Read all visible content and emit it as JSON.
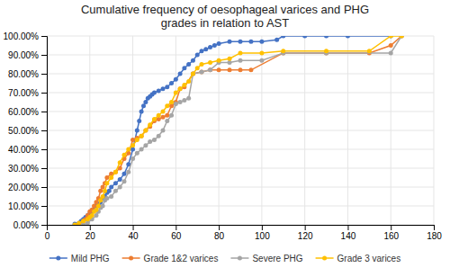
{
  "chart_data": {
    "type": "line",
    "title": "Cumulative frequency of oesophageal varices and PHG\ngrades in relation to AST",
    "xlim": [
      0,
      180
    ],
    "ylim": [
      0.0,
      1.0
    ],
    "xticks": [
      0,
      20,
      40,
      60,
      80,
      100,
      120,
      140,
      160,
      180
    ],
    "yticks": [
      {
        "value": 0.0,
        "label": "0.00%"
      },
      {
        "value": 0.1,
        "label": "10.00%"
      },
      {
        "value": 0.2,
        "label": "20.00%"
      },
      {
        "value": 0.3,
        "label": "30.00%"
      },
      {
        "value": 0.4,
        "label": "40.00%"
      },
      {
        "value": 0.5,
        "label": "50.00%"
      },
      {
        "value": 0.6,
        "label": "60.00%"
      },
      {
        "value": 0.7,
        "label": "70.00%"
      },
      {
        "value": 0.8,
        "label": "80.00%"
      },
      {
        "value": 0.9,
        "label": "90.00%"
      },
      {
        "value": 1.0,
        "label": "100.00%"
      }
    ],
    "grid": true,
    "legend": "bottom",
    "series": [
      {
        "name": "Mild PHG",
        "color": "#4472C4",
        "marker": "circle",
        "x": [
          13,
          15,
          16,
          17,
          18,
          19,
          20,
          21,
          22,
          23,
          24,
          25,
          26,
          27,
          28,
          29,
          30,
          32,
          34,
          36,
          38,
          40,
          42,
          43,
          44,
          45,
          46,
          47,
          48,
          49,
          50,
          52,
          54,
          56,
          58,
          60,
          62,
          64,
          66,
          68,
          70,
          72,
          74,
          76,
          78,
          80,
          85,
          90,
          95,
          100,
          107,
          110,
          120,
          130,
          140,
          160
        ],
        "values": [
          0.005,
          0.01,
          0.02,
          0.03,
          0.04,
          0.05,
          0.06,
          0.07,
          0.08,
          0.1,
          0.11,
          0.12,
          0.14,
          0.15,
          0.17,
          0.18,
          0.2,
          0.22,
          0.24,
          0.27,
          0.32,
          0.4,
          0.5,
          0.55,
          0.6,
          0.63,
          0.65,
          0.67,
          0.68,
          0.69,
          0.7,
          0.71,
          0.72,
          0.73,
          0.75,
          0.77,
          0.8,
          0.83,
          0.85,
          0.87,
          0.9,
          0.92,
          0.93,
          0.94,
          0.95,
          0.96,
          0.97,
          0.97,
          0.97,
          0.97,
          0.98,
          1.0,
          1.0,
          1.0,
          1.0,
          1.0
        ]
      },
      {
        "name": "Grade 1&2 varices",
        "color": "#ED7D31",
        "marker": "circle",
        "x": [
          15,
          17,
          18,
          19,
          20,
          21,
          22,
          23,
          24,
          25,
          26,
          27,
          28,
          30,
          32,
          34,
          36,
          38,
          40,
          42,
          44,
          46,
          48,
          50,
          52,
          54,
          56,
          58,
          60,
          62,
          64,
          68,
          72,
          76,
          80,
          85,
          90,
          95,
          110,
          130,
          150,
          160,
          165
        ],
        "values": [
          0.0,
          0.02,
          0.03,
          0.05,
          0.07,
          0.08,
          0.1,
          0.12,
          0.14,
          0.18,
          0.2,
          0.22,
          0.25,
          0.27,
          0.28,
          0.3,
          0.35,
          0.38,
          0.45,
          0.46,
          0.47,
          0.5,
          0.52,
          0.55,
          0.56,
          0.57,
          0.58,
          0.63,
          0.65,
          0.72,
          0.73,
          0.8,
          0.81,
          0.82,
          0.82,
          0.82,
          0.82,
          0.82,
          0.91,
          0.91,
          0.91,
          0.95,
          1.0
        ]
      },
      {
        "name": "Severe PHG",
        "color": "#A5A5A5",
        "marker": "circle",
        "x": [
          17,
          19,
          21,
          23,
          24,
          25,
          26,
          27,
          28,
          30,
          32,
          34,
          36,
          38,
          40,
          42,
          44,
          46,
          48,
          50,
          52,
          54,
          56,
          58,
          60,
          62,
          64,
          66,
          68,
          72,
          76,
          80,
          85,
          90,
          100,
          110,
          130,
          160,
          165
        ],
        "values": [
          0.0,
          0.01,
          0.03,
          0.05,
          0.07,
          0.09,
          0.1,
          0.13,
          0.14,
          0.15,
          0.18,
          0.2,
          0.23,
          0.28,
          0.35,
          0.38,
          0.4,
          0.42,
          0.44,
          0.45,
          0.47,
          0.5,
          0.55,
          0.58,
          0.64,
          0.65,
          0.66,
          0.67,
          0.8,
          0.81,
          0.82,
          0.86,
          0.86,
          0.87,
          0.87,
          0.91,
          0.91,
          0.91,
          1.0
        ]
      },
      {
        "name": "Grade 3 varices",
        "color": "#FFC000",
        "marker": "circle",
        "x": [
          13,
          15,
          17,
          19,
          20,
          21,
          22,
          23,
          24,
          25,
          26,
          27,
          28,
          30,
          32,
          34,
          36,
          38,
          40,
          42,
          44,
          46,
          48,
          50,
          52,
          54,
          56,
          58,
          60,
          62,
          64,
          66,
          68,
          70,
          72,
          76,
          80,
          85,
          90,
          100,
          110,
          130,
          150,
          160,
          165
        ],
        "values": [
          0.0,
          0.01,
          0.02,
          0.03,
          0.04,
          0.05,
          0.07,
          0.08,
          0.1,
          0.13,
          0.15,
          0.18,
          0.22,
          0.25,
          0.28,
          0.33,
          0.37,
          0.4,
          0.42,
          0.45,
          0.47,
          0.5,
          0.53,
          0.56,
          0.58,
          0.6,
          0.63,
          0.65,
          0.7,
          0.72,
          0.74,
          0.76,
          0.8,
          0.83,
          0.85,
          0.86,
          0.87,
          0.88,
          0.91,
          0.91,
          0.92,
          0.92,
          0.92,
          1.0,
          1.0
        ]
      }
    ]
  }
}
